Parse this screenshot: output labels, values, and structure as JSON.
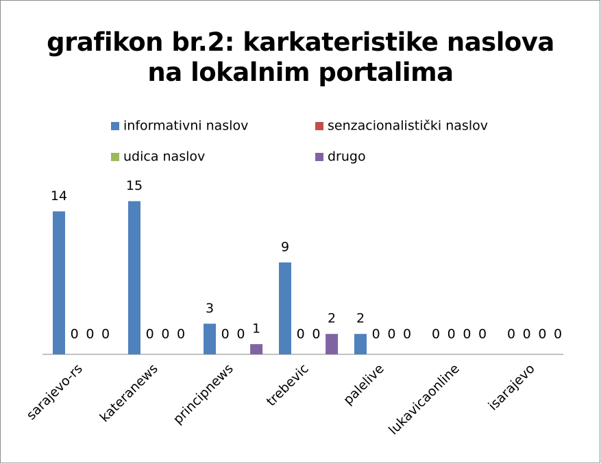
{
  "chart_data": {
    "type": "bar",
    "title": "grafikon br.2: karkateristike naslova na lokalnim portalima",
    "categories": [
      "sarajevo-rs",
      "kateranews",
      "principnews",
      "trebevic",
      "palelive",
      "lukavicaonline",
      "isarajevo"
    ],
    "series": [
      {
        "name": "informativni naslov",
        "color": "#4f81bd",
        "values": [
          14,
          15,
          3,
          9,
          2,
          0,
          0
        ]
      },
      {
        "name": "senzacionalistički naslov",
        "color": "#c0504d",
        "values": [
          0,
          0,
          0,
          0,
          0,
          0,
          0
        ]
      },
      {
        "name": "udica naslov",
        "color": "#9bbb59",
        "values": [
          0,
          0,
          0,
          0,
          0,
          0,
          0
        ]
      },
      {
        "name": "drugo",
        "color": "#8064a2",
        "values": [
          0,
          0,
          1,
          2,
          0,
          0,
          0
        ]
      }
    ]
  }
}
